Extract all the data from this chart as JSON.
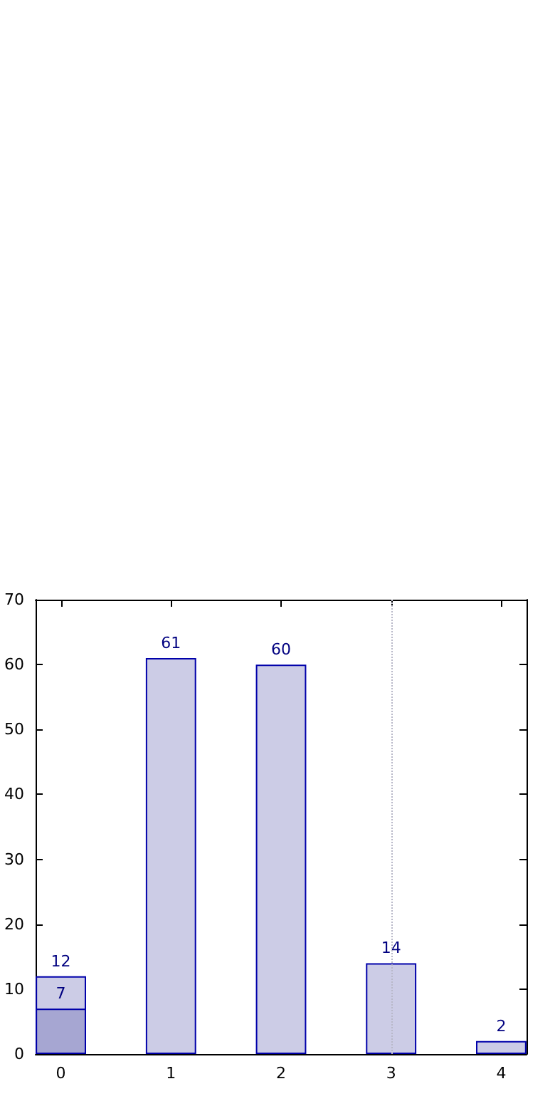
{
  "chart_data": {
    "type": "bar",
    "x": [
      0,
      1,
      2,
      3,
      4
    ],
    "series": [
      {
        "color": "#ccccE6",
        "values": [
          12,
          61,
          60,
          14,
          2
        ]
      },
      {
        "color": "#a6a6d2",
        "values": [
          7,
          null,
          null,
          null,
          null
        ]
      }
    ],
    "xlim": [
      -0.23,
      4.23
    ],
    "xticks": [
      0,
      1,
      2,
      3,
      4
    ],
    "ylim": [
      0,
      70
    ],
    "yticks": [
      0,
      10,
      20,
      30,
      40,
      50,
      60,
      70
    ],
    "data_labels": true,
    "ref_lines": [
      {
        "axis": "x",
        "value": 3,
        "color": "#b8b8c8",
        "line_style": "dotted"
      }
    ]
  }
}
